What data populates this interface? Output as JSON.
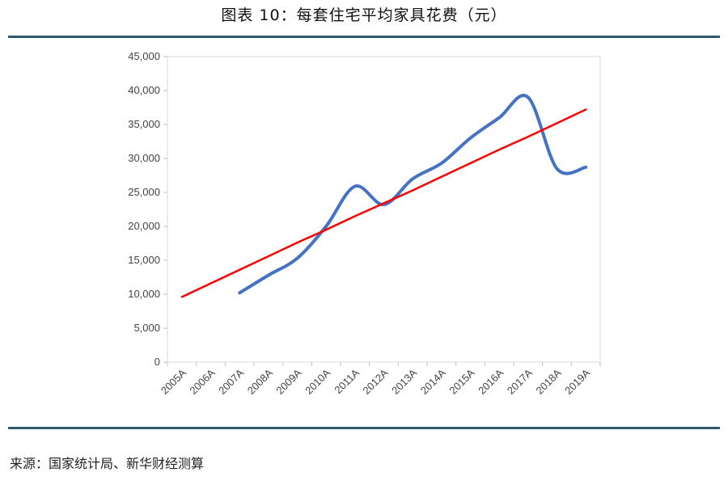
{
  "title": "图表 10：每套住宅平均家具花费（元）",
  "source": "来源：国家统计局、新华财经测算",
  "chart_data": {
    "type": "line",
    "title": "图表 10：每套住宅平均家具花费（元）",
    "xlabel": "",
    "ylabel": "",
    "categories": [
      "2005A",
      "2006A",
      "2007A",
      "2008A",
      "2009A",
      "2010A",
      "2011A",
      "2012A",
      "2013A",
      "2014A",
      "2015A",
      "2016A",
      "2017A",
      "2018A",
      "2019A"
    ],
    "ylim": [
      0,
      45000
    ],
    "yticks": [
      0,
      5000,
      10000,
      15000,
      20000,
      25000,
      30000,
      35000,
      40000,
      45000
    ],
    "ytick_labels": [
      "0",
      "5,000",
      "10,000",
      "15,000",
      "20,000",
      "25,000",
      "30,000",
      "35,000",
      "40,000",
      "45,000"
    ],
    "grid": false,
    "series": [
      {
        "color": "#4472c4",
        "smooth": true,
        "values": [
          null,
          null,
          10200,
          12800,
          15300,
          20000,
          25900,
          23200,
          27000,
          29300,
          33000,
          36000,
          39000,
          28500,
          28700
        ]
      },
      {
        "color": "#ff0000",
        "trendline": true,
        "values": [
          9600,
          11600,
          13600,
          15600,
          17600,
          19500,
          21500,
          23400,
          25300,
          27300,
          29300,
          31300,
          33200,
          35200,
          37200
        ]
      }
    ]
  }
}
